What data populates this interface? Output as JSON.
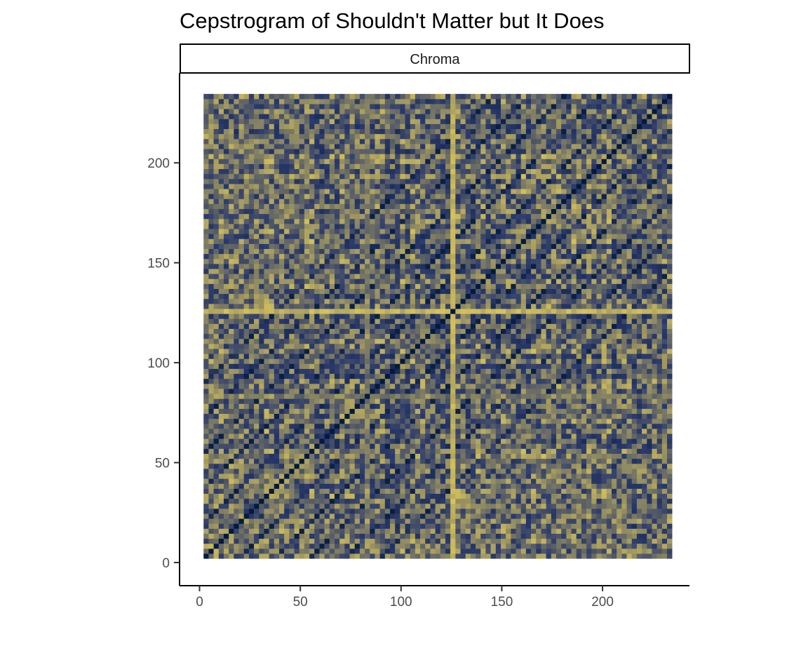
{
  "chart_data": {
    "type": "heatmap",
    "title": "Cepstrogram of Shouldn't Matter but It Does",
    "facet": "Chroma",
    "xlabel": "",
    "ylabel": "",
    "xlim": [
      0,
      232
    ],
    "ylim": [
      0,
      232
    ],
    "x_ticks": [
      0,
      50,
      100,
      150,
      200
    ],
    "y_ticks": [
      0,
      50,
      100,
      150,
      200
    ],
    "x_tick_labels": [
      "0",
      "50",
      "100",
      "150",
      "200"
    ],
    "y_tick_labels": [
      "0",
      "50",
      "100",
      "150",
      "200"
    ],
    "grid": false,
    "legend": "none",
    "colors": {
      "low": "#041a3d",
      "mid": "#2b3a6b",
      "high": "#e6cf5a"
    },
    "matrix": {
      "description_free": true,
      "size": 93,
      "cell_span": 2.5,
      "diagonal_value": 0,
      "bright_index": 125,
      "bright_value": 0.95,
      "stripe_index": 82,
      "stripe_value": 0.7
    }
  }
}
